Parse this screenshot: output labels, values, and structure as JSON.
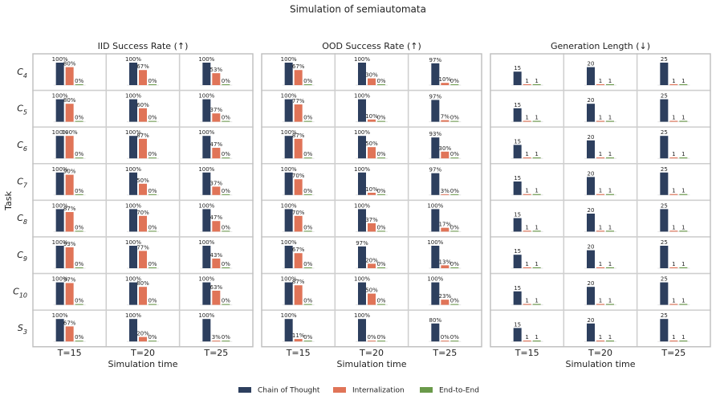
{
  "chart_data": {
    "type": "bar",
    "title": "Simulation of semiautomata",
    "ylabel": "Task",
    "rows": [
      {
        "base": "C",
        "sub": "4"
      },
      {
        "base": "C",
        "sub": "5"
      },
      {
        "base": "C",
        "sub": "6"
      },
      {
        "base": "C",
        "sub": "7"
      },
      {
        "base": "C",
        "sub": "8"
      },
      {
        "base": "C",
        "sub": "9"
      },
      {
        "base": "C",
        "sub": "10"
      },
      {
        "base": "S",
        "sub": "3"
      }
    ],
    "series": [
      {
        "name": "Chain of Thought",
        "color": "#2d3f5e"
      },
      {
        "name": "Internalization",
        "color": "#e07458"
      },
      {
        "name": "End-to-End",
        "color": "#6a9a4a"
      }
    ],
    "panels": [
      {
        "title": "IID Success Rate (↑)",
        "xlabel": "Simulation time",
        "columns": [
          "T=15",
          "T=20",
          "T=25"
        ],
        "ylim": [
          0,
          100
        ],
        "values": [
          [
            [
              100,
              80,
              0
            ],
            [
              100,
              67,
              0
            ],
            [
              100,
              53,
              0
            ]
          ],
          [
            [
              100,
              80,
              0
            ],
            [
              100,
              60,
              0
            ],
            [
              100,
              37,
              0
            ]
          ],
          [
            [
              100,
              100,
              0
            ],
            [
              100,
              87,
              0
            ],
            [
              100,
              47,
              0
            ]
          ],
          [
            [
              100,
              90,
              0
            ],
            [
              100,
              50,
              0
            ],
            [
              100,
              37,
              0
            ]
          ],
          [
            [
              100,
              87,
              0
            ],
            [
              100,
              70,
              0
            ],
            [
              100,
              47,
              0
            ]
          ],
          [
            [
              100,
              93,
              0
            ],
            [
              100,
              77,
              0
            ],
            [
              100,
              43,
              0
            ]
          ],
          [
            [
              100,
              97,
              0
            ],
            [
              100,
              80,
              0
            ],
            [
              100,
              63,
              0
            ]
          ],
          [
            [
              100,
              67,
              0
            ],
            [
              100,
              20,
              0
            ],
            [
              100,
              3,
              0
            ]
          ]
        ],
        "value_labels": [
          [
            [
              "100%",
              "80%",
              "0%"
            ],
            [
              "100%",
              "67%",
              "0%"
            ],
            [
              "100%",
              "53%",
              "0%"
            ]
          ],
          [
            [
              "100%",
              "80%",
              "0%"
            ],
            [
              "100%",
              "60%",
              "0%"
            ],
            [
              "100%",
              "37%",
              "0%"
            ]
          ],
          [
            [
              "100%",
              "100%",
              "0%"
            ],
            [
              "100%",
              "87%",
              "0%"
            ],
            [
              "100%",
              "47%",
              "0%"
            ]
          ],
          [
            [
              "100%",
              "90%",
              "0%"
            ],
            [
              "100%",
              "50%",
              "0%"
            ],
            [
              "100%",
              "37%",
              "0%"
            ]
          ],
          [
            [
              "100%",
              "87%",
              "0%"
            ],
            [
              "100%",
              "70%",
              "0%"
            ],
            [
              "100%",
              "47%",
              "0%"
            ]
          ],
          [
            [
              "100%",
              "93%",
              "0%"
            ],
            [
              "100%",
              "77%",
              "0%"
            ],
            [
              "100%",
              "43%",
              "0%"
            ]
          ],
          [
            [
              "100%",
              "97%",
              "0%"
            ],
            [
              "100%",
              "80%",
              "0%"
            ],
            [
              "100%",
              "63%",
              "0%"
            ]
          ],
          [
            [
              "100%",
              "67%",
              "0%"
            ],
            [
              "100%",
              "20%",
              "0%"
            ],
            [
              "100%",
              "3%",
              "0%"
            ]
          ]
        ]
      },
      {
        "title": "OOD Success Rate (↑)",
        "xlabel": "Simulation time",
        "columns": [
          "T=15",
          "T=20",
          "T=25"
        ],
        "ylim": [
          0,
          100
        ],
        "values": [
          [
            [
              100,
              67,
              0
            ],
            [
              100,
              30,
              0
            ],
            [
              97,
              10,
              0
            ]
          ],
          [
            [
              100,
              77,
              0
            ],
            [
              100,
              10,
              0
            ],
            [
              97,
              7,
              0
            ]
          ],
          [
            [
              100,
              87,
              0
            ],
            [
              100,
              50,
              0
            ],
            [
              93,
              30,
              0
            ]
          ],
          [
            [
              100,
              70,
              0
            ],
            [
              100,
              10,
              0
            ],
            [
              97,
              3,
              0
            ]
          ],
          [
            [
              100,
              70,
              0
            ],
            [
              100,
              37,
              0
            ],
            [
              100,
              17,
              0
            ]
          ],
          [
            [
              100,
              67,
              0
            ],
            [
              97,
              20,
              0
            ],
            [
              100,
              13,
              0
            ]
          ],
          [
            [
              100,
              87,
              0
            ],
            [
              100,
              50,
              0
            ],
            [
              100,
              23,
              0
            ]
          ],
          [
            [
              100,
              11,
              0
            ],
            [
              100,
              0,
              0
            ],
            [
              80,
              0,
              0
            ]
          ]
        ],
        "value_labels": [
          [
            [
              "100%",
              "67%",
              "0%"
            ],
            [
              "100%",
              "30%",
              "0%"
            ],
            [
              "97%",
              "10%",
              "0%"
            ]
          ],
          [
            [
              "100%",
              "77%",
              "0%"
            ],
            [
              "100%",
              "10%",
              "0%"
            ],
            [
              "97%",
              "7%",
              "0%"
            ]
          ],
          [
            [
              "100%",
              "87%",
              "0%"
            ],
            [
              "100%",
              "50%",
              "0%"
            ],
            [
              "93%",
              "30%",
              "0%"
            ]
          ],
          [
            [
              "100%",
              "70%",
              "0%"
            ],
            [
              "100%",
              "10%",
              "0%"
            ],
            [
              "97%",
              "3%",
              "0%"
            ]
          ],
          [
            [
              "100%",
              "70%",
              "0%"
            ],
            [
              "100%",
              "37%",
              "0%"
            ],
            [
              "100%",
              "17%",
              "0%"
            ]
          ],
          [
            [
              "100%",
              "67%",
              "0%"
            ],
            [
              "97%",
              "20%",
              "0%"
            ],
            [
              "100%",
              "13%",
              "0%"
            ]
          ],
          [
            [
              "100%",
              "87%",
              "0%"
            ],
            [
              "100%",
              "50%",
              "0%"
            ],
            [
              "100%",
              "23%",
              "0%"
            ]
          ],
          [
            [
              "100%",
              "11%",
              "0%"
            ],
            [
              "100%",
              "0%",
              "0%"
            ],
            [
              "80%",
              "0%",
              "0%"
            ]
          ]
        ]
      },
      {
        "title": "Generation Length (↓)",
        "xlabel": "Simulation time",
        "columns": [
          "T=15",
          "T=20",
          "T=25"
        ],
        "ylim": [
          0,
          25
        ],
        "values": [
          [
            [
              15,
              1,
              1
            ],
            [
              20,
              1,
              1
            ],
            [
              25,
              1,
              1
            ]
          ],
          [
            [
              15,
              1,
              1
            ],
            [
              20,
              1,
              1
            ],
            [
              25,
              1,
              1
            ]
          ],
          [
            [
              15,
              1,
              1
            ],
            [
              20,
              1,
              1
            ],
            [
              25,
              1,
              1
            ]
          ],
          [
            [
              15,
              1,
              1
            ],
            [
              20,
              1,
              1
            ],
            [
              25,
              1,
              1
            ]
          ],
          [
            [
              15,
              1,
              1
            ],
            [
              20,
              1,
              1
            ],
            [
              25,
              1,
              1
            ]
          ],
          [
            [
              15,
              1,
              1
            ],
            [
              20,
              1,
              1
            ],
            [
              25,
              1,
              1
            ]
          ],
          [
            [
              15,
              1,
              1
            ],
            [
              20,
              1,
              1
            ],
            [
              25,
              1,
              1
            ]
          ],
          [
            [
              15,
              1,
              1
            ],
            [
              20,
              1,
              1
            ],
            [
              25,
              1,
              1
            ]
          ]
        ]
      }
    ]
  }
}
